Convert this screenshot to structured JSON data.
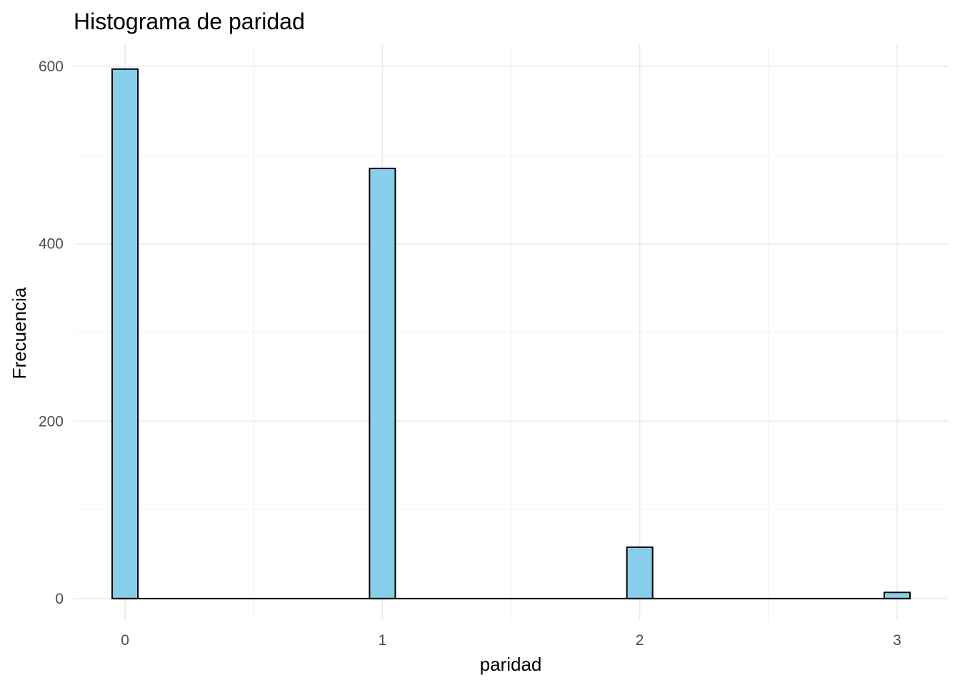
{
  "chart_data": {
    "type": "bar",
    "title": "Histograma de paridad",
    "xlabel": "paridad",
    "ylabel": "Frecuencia",
    "x_ticks": [
      "0",
      "1",
      "2",
      "3"
    ],
    "y_ticks": [
      "0",
      "200",
      "400",
      "600"
    ],
    "xlim": [
      -0.2,
      3.2
    ],
    "ylim": [
      -25,
      625
    ],
    "grid": true,
    "legend": "none",
    "bar_color": "#87CEEB",
    "outline_color": "#000000",
    "bin_width": 0.1,
    "categories": [
      "0",
      "1",
      "2",
      "3"
    ],
    "values": [
      597,
      485,
      58,
      7
    ]
  }
}
